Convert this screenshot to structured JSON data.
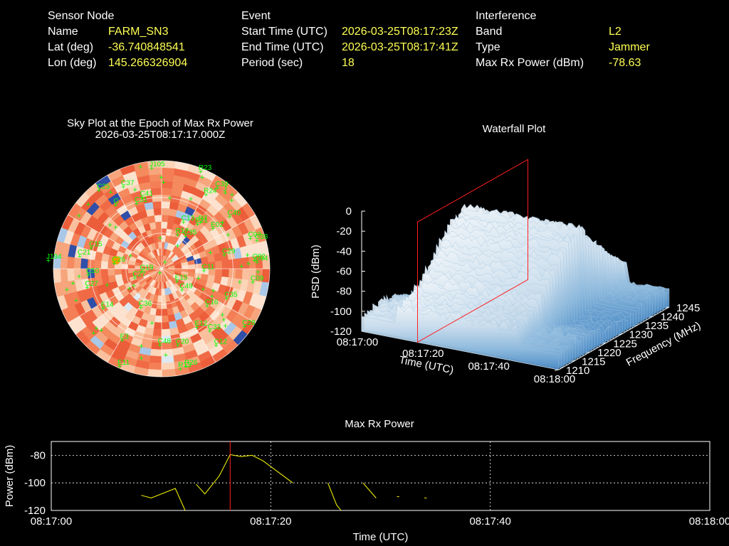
{
  "header": {
    "sensor": {
      "title": "Sensor Node",
      "rows": [
        {
          "label": "Name",
          "value": "FARM_SN3"
        },
        {
          "label": "Lat (deg)",
          "value": "-36.740848541"
        },
        {
          "label": "Lon (deg)",
          "value": "145.266326904"
        }
      ]
    },
    "event": {
      "title": "Event",
      "rows": [
        {
          "label": "Start Time (UTC)",
          "value": "2026-03-25T08:17:23Z"
        },
        {
          "label": "End Time (UTC)",
          "value": "2026-03-25T08:17:41Z"
        },
        {
          "label": "Period (sec)",
          "value": "18"
        }
      ]
    },
    "interference": {
      "title": "Interference",
      "rows": [
        {
          "label": "Band",
          "value": "L2"
        },
        {
          "label": "Type",
          "value": "Jammer"
        },
        {
          "label": "Max Rx Power (dBm)",
          "value": "-78.63"
        }
      ]
    }
  },
  "colors": {
    "highlight": "#ffff55",
    "marker": "#ff2020",
    "satellite": "#00ff00",
    "line": "#ffff00",
    "frame": "#ffffff"
  },
  "chart_data": [
    {
      "type": "scatter",
      "title": "Sky Plot at the Epoch of Max Rx Power",
      "subtitle": "2026-03-25T08:17:17.000Z",
      "satellites": [
        "J105",
        "R23",
        "C12",
        "C33",
        "C38",
        "C40",
        "J",
        "C49",
        "R13",
        "R17",
        "R7",
        "C41",
        "C31",
        "C35",
        "C27",
        "E15",
        "C15",
        "C26",
        "C35",
        "C48",
        "C04",
        "E14",
        "J194",
        "C02",
        "E21",
        "C09",
        "C03",
        "C39",
        "G",
        "E12",
        "C29",
        "C21",
        "E3",
        "C36",
        "C37",
        "E02",
        "C28",
        "R24",
        "C16",
        "C13",
        "C25",
        "C20",
        "G19",
        "C50",
        "C11",
        "E11",
        "R26",
        "C27"
      ]
    },
    {
      "type": "area",
      "title": "Waterfall Plot",
      "xlabel": "Time (UTC)",
      "ylabel": "Frequency (MHz)",
      "zlabel": "PSD (dBm)",
      "x_ticks": [
        "08:17:00",
        "08:17:20",
        "08:17:40",
        "08:18:00"
      ],
      "y_ticks": [
        "1210",
        "1215",
        "1220",
        "1225",
        "1230",
        "1235",
        "1240",
        "1245"
      ],
      "z_ticks": [
        "0",
        "-20",
        "-40",
        "-60",
        "-80",
        "-100",
        "-120"
      ],
      "zlim": [
        -120,
        0
      ],
      "marker_time": "08:17:17"
    },
    {
      "type": "line",
      "title": "Max Rx Power",
      "xlabel": "Time (UTC)",
      "ylabel": "Power (dBm)",
      "x_ticks": [
        "08:17:00",
        "08:17:20",
        "08:17:40",
        "08:18:00"
      ],
      "y_ticks": [
        -80,
        -100,
        -120
      ],
      "xlim": [
        0,
        60
      ],
      "ylim": [
        -120,
        -70
      ],
      "grid": true,
      "marker_x": 16.3,
      "segments": [
        [
          [
            8.2,
            -109
          ],
          [
            9.1,
            -111
          ],
          [
            11.3,
            -104
          ],
          [
            12.2,
            -120
          ]
        ],
        [
          [
            13.2,
            -101
          ],
          [
            14.0,
            -108
          ],
          [
            15.3,
            -95
          ],
          [
            16.3,
            -79.5
          ],
          [
            17.3,
            -81
          ],
          [
            18.3,
            -80
          ],
          [
            19.3,
            -84
          ],
          [
            22.0,
            -100
          ]
        ],
        [
          [
            25.2,
            -100
          ],
          [
            26.0,
            -116
          ],
          [
            26.4,
            -120
          ]
        ],
        [
          [
            28.4,
            -100
          ],
          [
            29.6,
            -111
          ]
        ],
        [
          [
            31.5,
            -110
          ],
          [
            31.7,
            -110
          ]
        ],
        [
          [
            34.0,
            -111
          ],
          [
            34.2,
            -111
          ]
        ]
      ]
    }
  ]
}
